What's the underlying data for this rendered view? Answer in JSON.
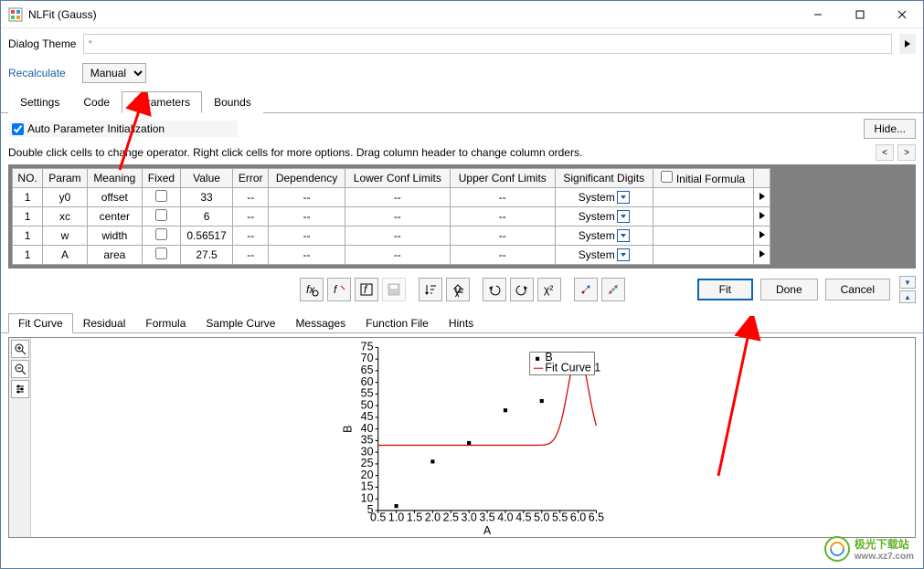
{
  "window": {
    "title": "NLFit (Gauss)"
  },
  "theme": {
    "label": "Dialog Theme",
    "value": "*"
  },
  "recalculate": {
    "label": "Recalculate",
    "mode": "Manual"
  },
  "tabs": {
    "items": [
      "Settings",
      "Code",
      "Parameters",
      "Bounds"
    ],
    "activeIndex": 2
  },
  "autoParam": {
    "label": "Auto Parameter Initialization",
    "checked": true
  },
  "hideBtn": "Hide...",
  "helperText": "Double click cells to change operator. Right click cells for more options. Drag column header to change column orders.",
  "paramTable": {
    "headers": [
      "NO.",
      "Param",
      "Meaning",
      "Fixed",
      "Value",
      "Error",
      "Dependency",
      "Lower Conf Limits",
      "Upper Conf Limits",
      "Significant Digits",
      "Initial Formula"
    ],
    "rows": [
      {
        "no": "1",
        "param": "y0",
        "meaning": "offset",
        "fixed": false,
        "value": "33",
        "error": "--",
        "dep": "--",
        "lcl": "--",
        "ucl": "--",
        "sig": "System",
        "formula": ""
      },
      {
        "no": "1",
        "param": "xc",
        "meaning": "center",
        "fixed": false,
        "value": "6",
        "error": "--",
        "dep": "--",
        "lcl": "--",
        "ucl": "--",
        "sig": "System",
        "formula": ""
      },
      {
        "no": "1",
        "param": "w",
        "meaning": "width",
        "fixed": false,
        "value": "0.56517",
        "error": "--",
        "dep": "--",
        "lcl": "--",
        "ucl": "--",
        "sig": "System",
        "formula": ""
      },
      {
        "no": "1",
        "param": "A",
        "meaning": "area",
        "fixed": false,
        "value": "27.5",
        "error": "--",
        "dep": "--",
        "lcl": "--",
        "ucl": "--",
        "sig": "System",
        "formula": ""
      }
    ]
  },
  "mainButtons": {
    "fit": "Fit",
    "done": "Done",
    "cancel": "Cancel"
  },
  "lowerTabs": {
    "items": [
      "Fit Curve",
      "Residual",
      "Formula",
      "Sample Curve",
      "Messages",
      "Function File",
      "Hints"
    ],
    "activeIndex": 0
  },
  "chart": {
    "xlabel": "A",
    "ylabel": "B",
    "legend": {
      "series1": "B",
      "series2": "Fit Curve 1"
    },
    "xlim": [
      0.5,
      6.5
    ],
    "ylim": [
      5,
      75
    ],
    "xticks": [
      0.5,
      1.0,
      1.5,
      2.0,
      2.5,
      3.0,
      3.5,
      4.0,
      4.5,
      5.0,
      5.5,
      6.0,
      6.5
    ],
    "yticks": [
      5,
      10,
      15,
      20,
      25,
      30,
      35,
      40,
      45,
      50,
      55,
      60,
      65,
      70,
      75
    ],
    "points": [
      {
        "x": 1.0,
        "y": 6.9
      },
      {
        "x": 2.0,
        "y": 26
      },
      {
        "x": 3.0,
        "y": 34
      },
      {
        "x": 4.0,
        "y": 48
      },
      {
        "x": 5.0,
        "y": 52
      },
      {
        "x": 6.0,
        "y": 68
      }
    ],
    "curve_color": "#d40000",
    "point_color": "#000000",
    "background_color": "#ffffff"
  },
  "watermark": {
    "main": "极光下载站",
    "sub": "www.xz7.com"
  }
}
